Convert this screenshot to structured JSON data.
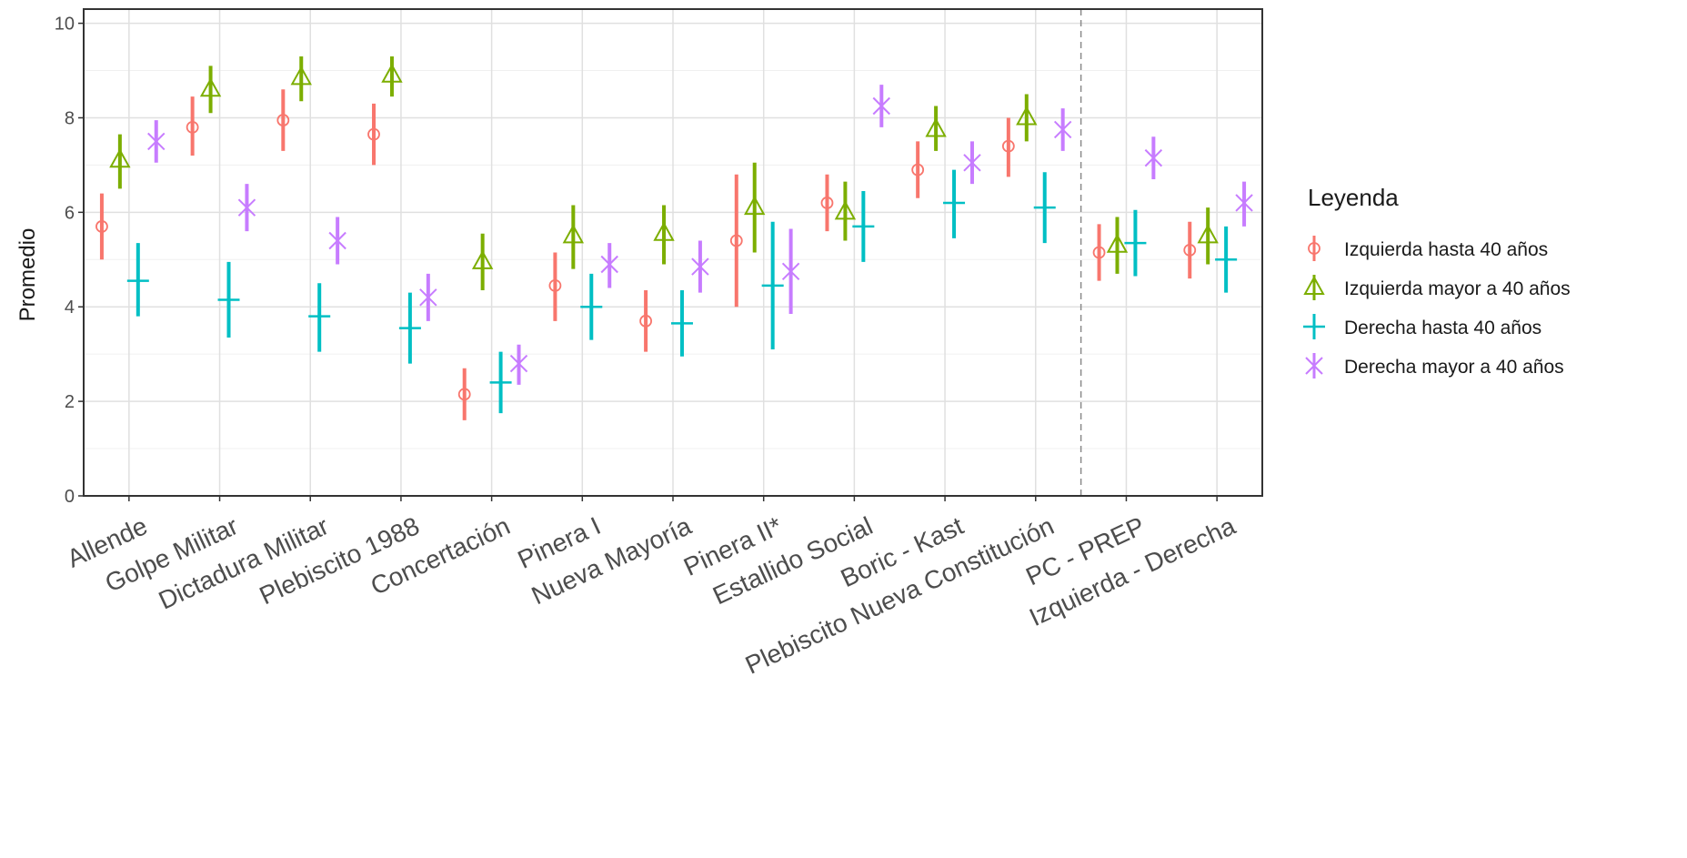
{
  "chart_data": {
    "type": "errorbar",
    "ylabel": "Promedio",
    "ylim": [
      0,
      10.3
    ],
    "yticks": [
      0,
      2,
      4,
      6,
      8,
      10
    ],
    "grid": true,
    "legend_title": "Leyenda",
    "legend_position": "right",
    "divider_after_index": 10,
    "categories": [
      "Allende",
      "Golpe Militar",
      "Dictadura Militar",
      "Plebiscito 1988",
      "Concertación",
      "Pinera I",
      "Nueva Mayoría",
      "Pinera II*",
      "Estallido Social",
      "Boric - Kast",
      "Plebiscito Nueva Constitución",
      "PC - PREP",
      "Izquierda - Derecha"
    ],
    "series": [
      {
        "name": "Izquierda hasta 40 años",
        "color": "#F8766D",
        "shape": "circle",
        "values": [
          5.7,
          7.8,
          7.95,
          7.65,
          2.15,
          4.45,
          3.7,
          5.4,
          6.2,
          6.9,
          7.4,
          5.15,
          5.2
        ],
        "lower": [
          5.0,
          7.2,
          7.3,
          7.0,
          1.6,
          3.7,
          3.05,
          4.0,
          5.6,
          6.3,
          6.75,
          4.55,
          4.6
        ],
        "upper": [
          6.4,
          8.45,
          8.6,
          8.3,
          2.7,
          5.15,
          4.35,
          6.8,
          6.8,
          7.5,
          8.0,
          5.75,
          5.8
        ]
      },
      {
        "name": "Izquierda mayor a 40 años",
        "color": "#7CAE00",
        "shape": "triangle",
        "values": [
          7.1,
          8.6,
          8.85,
          8.9,
          4.95,
          5.5,
          5.55,
          6.1,
          6.0,
          7.75,
          8.0,
          5.3,
          5.5
        ],
        "lower": [
          6.5,
          8.1,
          8.35,
          8.45,
          4.35,
          4.8,
          4.9,
          5.15,
          5.4,
          7.3,
          7.5,
          4.7,
          4.9
        ],
        "upper": [
          7.65,
          9.1,
          9.3,
          9.3,
          5.55,
          6.15,
          6.15,
          7.05,
          6.65,
          8.25,
          8.5,
          5.9,
          6.1
        ]
      },
      {
        "name": "Derecha hasta 40 años",
        "color": "#00BFC4",
        "shape": "plus",
        "values": [
          4.55,
          4.15,
          3.8,
          3.55,
          2.4,
          4.0,
          3.65,
          4.45,
          5.7,
          6.2,
          6.1,
          5.35,
          5.0
        ],
        "lower": [
          3.8,
          3.35,
          3.05,
          2.8,
          1.75,
          3.3,
          2.95,
          3.1,
          4.95,
          5.45,
          5.35,
          4.65,
          4.3
        ],
        "upper": [
          5.35,
          4.95,
          4.5,
          4.3,
          3.05,
          4.7,
          4.35,
          5.8,
          6.45,
          6.9,
          6.85,
          6.05,
          5.7
        ]
      },
      {
        "name": "Derecha mayor a 40 años",
        "color": "#C77CFF",
        "shape": "cross",
        "values": [
          7.5,
          6.1,
          5.4,
          4.2,
          2.8,
          4.9,
          4.85,
          4.75,
          8.25,
          7.05,
          7.75,
          7.15,
          6.2
        ],
        "lower": [
          7.05,
          5.6,
          4.9,
          3.7,
          2.35,
          4.4,
          4.3,
          3.85,
          7.8,
          6.6,
          7.3,
          6.7,
          5.7
        ],
        "upper": [
          7.95,
          6.6,
          5.9,
          4.7,
          3.2,
          5.35,
          5.4,
          5.65,
          8.7,
          7.5,
          8.2,
          7.6,
          6.65
        ]
      }
    ]
  }
}
